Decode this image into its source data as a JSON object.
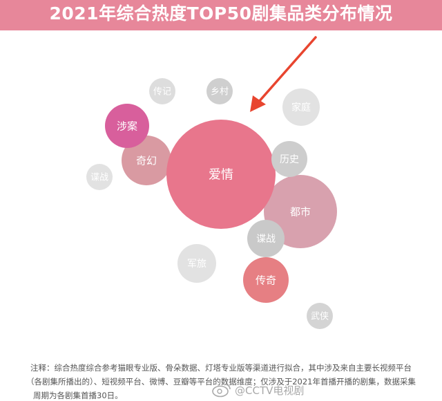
{
  "header": {
    "title": "2021年综合热度TOP50剧集品类分布情况"
  },
  "colors": {
    "header_bg": "#e7879a",
    "arrow": "#e8452f"
  },
  "chart_data": {
    "type": "bubble",
    "title": "2021年综合热度TOP50剧集品类分布情况",
    "bubbles": [
      {
        "label": "爱情",
        "size": 100,
        "color": "#e8768c",
        "text_color": "#ffffff"
      },
      {
        "label": "都市",
        "size": 38,
        "color": "#d8a1ae",
        "text_color": "#ffffff"
      },
      {
        "label": "奇幻",
        "size": 23,
        "color": "#d99aa2",
        "text_color": "#ffffff"
      },
      {
        "label": "涉案",
        "size": 11,
        "color": "#d85f9c",
        "text_color": "#ffffff"
      },
      {
        "label": "传奇",
        "size": 11,
        "color": "#e67f83",
        "text_color": "#ffffff"
      },
      {
        "label": "历史",
        "size": 7,
        "color": "#cdcdcd",
        "text_color": "#ffffff"
      },
      {
        "label": "家庭",
        "size": 7,
        "color": "#e2e2e2",
        "text_color": "#ffffff"
      },
      {
        "label": "军旅",
        "size": 7,
        "color": "#e2e2e2",
        "text_color": "#ffffff"
      },
      {
        "label": "谍战",
        "size": 7,
        "color": "#c9c9c9",
        "text_color": "#ffffff"
      },
      {
        "label": "谍战",
        "size": 4,
        "color": "#e2e2e2",
        "text_color": "#ffffff"
      },
      {
        "label": "传记",
        "size": 4,
        "color": "#dddddd",
        "text_color": "#ffffff"
      },
      {
        "label": "乡村",
        "size": 4,
        "color": "#cfcfcf",
        "text_color": "#ffffff"
      },
      {
        "label": "武侠",
        "size": 4,
        "color": "#d4d4d4",
        "text_color": "#ffffff"
      }
    ]
  },
  "note": {
    "line1": "注释：综合热度综合参考猫眼专业版、骨朵数据、灯塔专业版等渠道进行拟合，其中涉及来自主要长视频平台",
    "line2": "（各剧集所播出的）、短视频平台、微博、豆瓣等平台的数据维度；仅涉及于2021年首播开播的剧集，数据采集",
    "line3": "周期为各剧集首播30日。"
  },
  "watermark": {
    "text": "@CCTV电视剧"
  }
}
